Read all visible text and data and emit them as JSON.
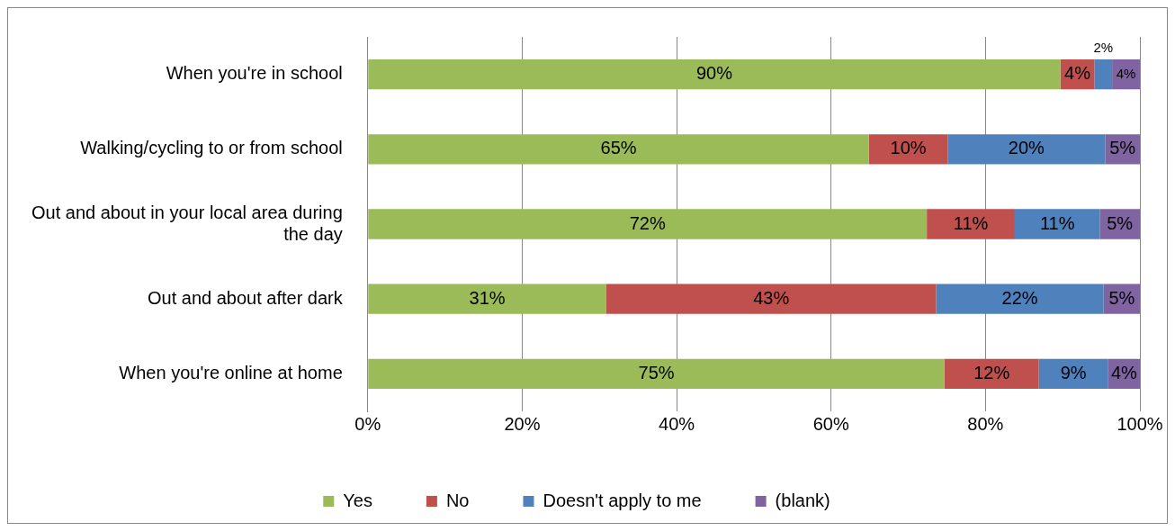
{
  "chart_data": {
    "type": "bar",
    "orientation": "horizontal",
    "stacked": true,
    "categories": [
      "When you're in school",
      "Walking/cycling to or from school",
      "Out and about in your local area during the day",
      "Out and about after dark",
      "When you're online at home"
    ],
    "series": [
      {
        "name": "Yes",
        "color": "#9bbb59",
        "values": [
          89.7,
          64.9,
          72.4,
          30.9,
          74.7
        ],
        "value_labels": [
          "90%",
          "65%",
          "72%",
          "31%",
          "75%"
        ]
      },
      {
        "name": "No",
        "color": "#c0504d",
        "values": [
          4.4,
          10.2,
          11.4,
          42.7,
          12.2
        ],
        "value_labels": [
          "4%",
          "10%",
          "11%",
          "43%",
          "12%"
        ]
      },
      {
        "name": "Doesn't apply to me",
        "color": "#4f81bd",
        "values": [
          2.3,
          20.4,
          11.0,
          21.7,
          9.0
        ],
        "value_labels": [
          "2%",
          "20%",
          "11%",
          "22%",
          "9%"
        ]
      },
      {
        "name": "(blank)",
        "color": "#8064a2",
        "values": [
          3.6,
          4.5,
          5.2,
          4.7,
          4.1
        ],
        "value_labels": [
          "4%",
          "5%",
          "5%",
          "5%",
          "4%"
        ]
      }
    ],
    "xlim": [
      0,
      100
    ],
    "xticks": [
      {
        "value": 0,
        "label": "0%"
      },
      {
        "value": 20,
        "label": "20%"
      },
      {
        "value": 40,
        "label": "40%"
      },
      {
        "value": 60,
        "label": "60%"
      },
      {
        "value": 80,
        "label": "80%"
      },
      {
        "value": 100,
        "label": "100%"
      }
    ],
    "grid": "x",
    "legend": "bottom"
  }
}
